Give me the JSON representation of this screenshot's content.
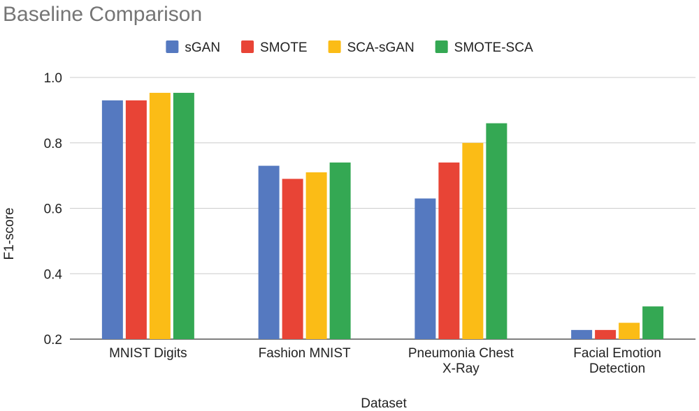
{
  "chart_data": {
    "type": "bar",
    "title": "Baseline Comparison",
    "xlabel": "Dataset",
    "ylabel": "F1-score",
    "categories": [
      [
        "MNIST Digits"
      ],
      [
        "Fashion MNIST"
      ],
      [
        "Pneumonia Chest",
        "X-Ray"
      ],
      [
        "Facial Emotion",
        "Detection"
      ]
    ],
    "series": [
      {
        "name": "sGAN",
        "color": "#5579c0",
        "values": [
          0.93,
          0.73,
          0.63,
          0.228
        ]
      },
      {
        "name": "SMOTE",
        "color": "#e84436",
        "values": [
          0.93,
          0.69,
          0.74,
          0.228
        ]
      },
      {
        "name": "SCA-sGAN",
        "color": "#fbbc16",
        "values": [
          0.953,
          0.71,
          0.8,
          0.25
        ]
      },
      {
        "name": "SMOTE-SCA",
        "color": "#34a853",
        "values": [
          0.953,
          0.74,
          0.86,
          0.3
        ]
      }
    ],
    "ylim": [
      0.2,
      1.0
    ],
    "yticks": [
      "0.2",
      "0.4",
      "0.6",
      "0.8",
      "1.0"
    ],
    "grid": true,
    "legend_position": "top"
  }
}
